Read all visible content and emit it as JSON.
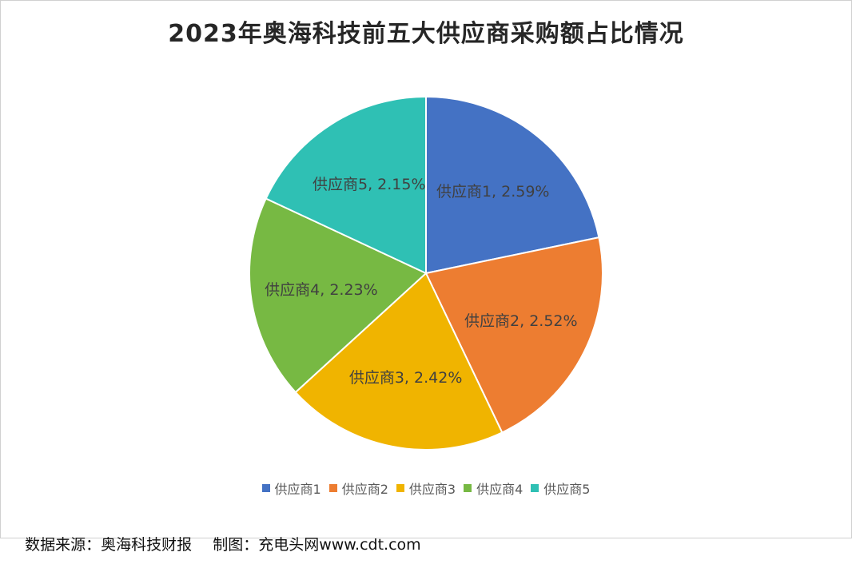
{
  "chart_data": {
    "type": "pie",
    "title": "2023年奥海科技前五大供应商采购额占比情况",
    "slices": [
      {
        "name": "供应商1",
        "value": 2.59,
        "label": "2.59%",
        "color": "#4472C4"
      },
      {
        "name": "供应商2",
        "value": 2.52,
        "label": "2.52%",
        "color": "#ED7D31"
      },
      {
        "name": "供应商3",
        "value": 2.42,
        "label": "2.42%",
        "color": "#F0B400"
      },
      {
        "name": "供应商4",
        "value": 2.23,
        "label": "2.23%",
        "color": "#77B943"
      },
      {
        "name": "供应商5",
        "value": 2.15,
        "label": "2.15%",
        "color": "#2FC0B4"
      }
    ],
    "legend_position": "bottom"
  },
  "footer": {
    "source": "数据来源：奥海科技财报",
    "credit": "制图：充电头网www.cdt.com"
  }
}
